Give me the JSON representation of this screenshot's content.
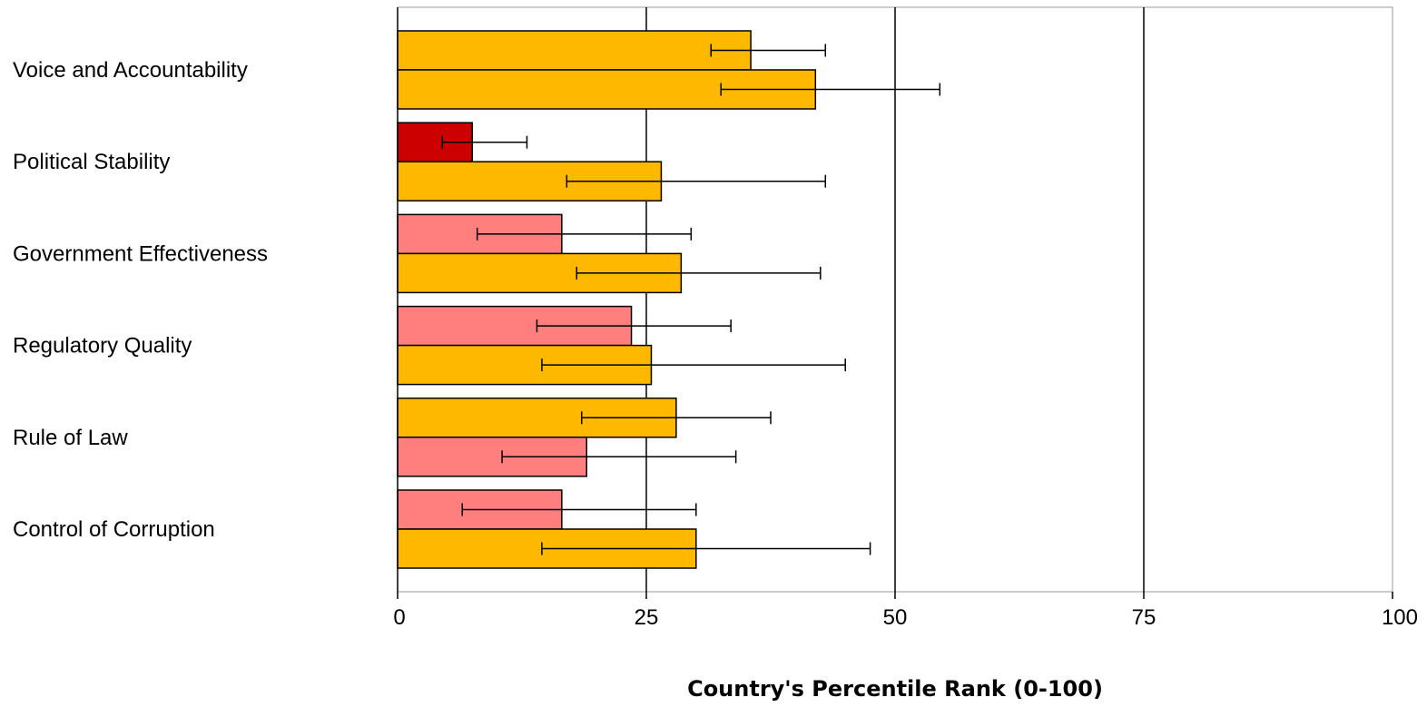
{
  "chart_data": {
    "type": "bar",
    "orientation": "horizontal",
    "categories": [
      "Voice and Accountability",
      "Political Stability",
      "Government Effectiveness",
      "Regulatory Quality",
      "Rule of Law",
      "Control of Corruption"
    ],
    "bars": [
      [
        {
          "value": 35.5,
          "low": 31.5,
          "high": 43,
          "color": "#FFB800"
        },
        {
          "value": 42,
          "low": 32.5,
          "high": 54.5,
          "color": "#FFB800"
        }
      ],
      [
        {
          "value": 7.5,
          "low": 4.5,
          "high": 13,
          "color": "#CC0000"
        },
        {
          "value": 26.5,
          "low": 17,
          "high": 43,
          "color": "#FFB800"
        }
      ],
      [
        {
          "value": 16.5,
          "low": 8,
          "high": 29.5,
          "color": "#FF7F7F"
        },
        {
          "value": 28.5,
          "low": 18,
          "high": 42.5,
          "color": "#FFB800"
        }
      ],
      [
        {
          "value": 23.5,
          "low": 14,
          "high": 33.5,
          "color": "#FF7F7F"
        },
        {
          "value": 25.5,
          "low": 14.5,
          "high": 45,
          "color": "#FFB800"
        }
      ],
      [
        {
          "value": 28,
          "low": 18.5,
          "high": 37.5,
          "color": "#FFB800"
        },
        {
          "value": 19,
          "low": 10.5,
          "high": 34,
          "color": "#FF7F7F"
        }
      ],
      [
        {
          "value": 16.5,
          "low": 6.5,
          "high": 30,
          "color": "#FF7F7F"
        },
        {
          "value": 30,
          "low": 14.5,
          "high": 47.5,
          "color": "#FFB800"
        }
      ]
    ],
    "xlim": [
      0,
      100
    ],
    "xticks": [
      "0",
      "25",
      "50",
      "75",
      "100"
    ],
    "xlabel": "Country's Percentile Rank (0-100)",
    "grid": "vertical lines at 25, 50, 75"
  }
}
